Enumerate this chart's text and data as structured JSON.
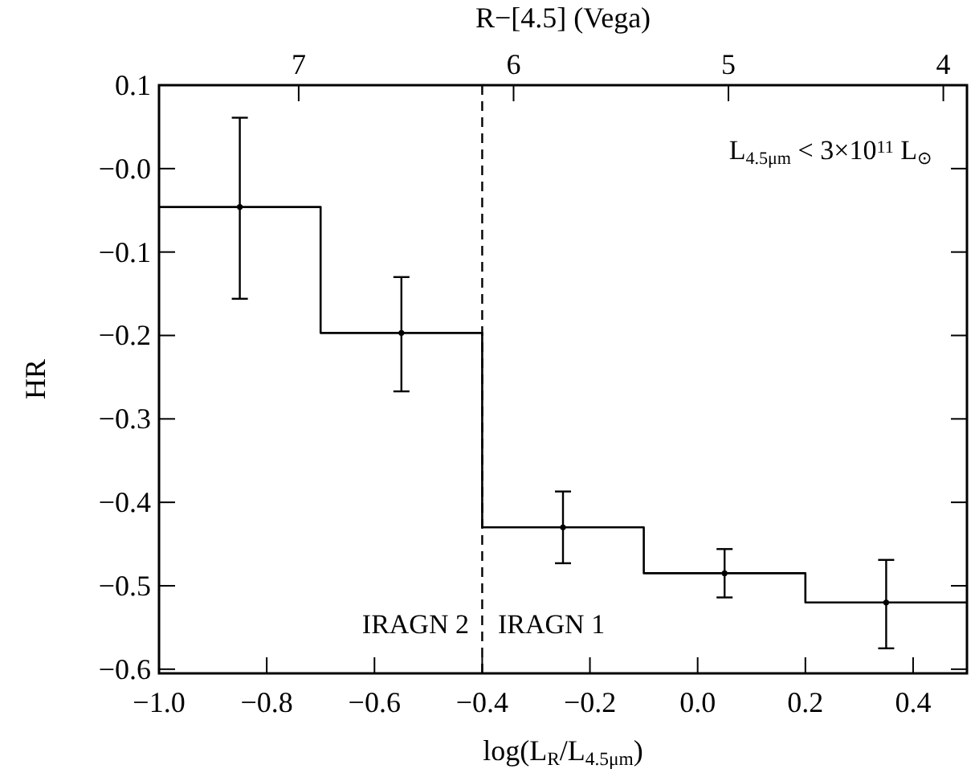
{
  "chart_data": {
    "type": "histogram",
    "xlabel": "log(L$_{R}$/L$_{4.5μm}$)",
    "ylabel": "HR",
    "x2label": "R−[4.5] (Vega)",
    "bins": [
      -1.0,
      -0.7,
      -0.4,
      -0.1,
      0.2,
      0.5
    ],
    "values": [
      -0.046,
      -0.197,
      -0.43,
      -0.485,
      -0.52
    ],
    "color": "#000000",
    "series": [
      {
        "type": "scatter",
        "x": [
          -0.85,
          -0.55,
          -0.25,
          0.05,
          0.35
        ],
        "values": [
          -0.046,
          -0.197,
          -0.43,
          -0.485,
          -0.52
        ],
        "errors": [
          [
            -0.156,
            0.061
          ],
          [
            -0.267,
            -0.13
          ],
          [
            -0.473,
            -0.387
          ],
          [
            -0.514,
            -0.456
          ],
          [
            -0.575,
            -0.469
          ]
        ],
        "color": "#000000"
      }
    ],
    "marker": "circle",
    "xlim": [
      -1.0,
      0.5
    ],
    "xticks": [
      {
        "value": -1.0,
        "label": "−1.0"
      },
      {
        "value": -0.8,
        "label": "−0.8"
      },
      {
        "value": -0.6,
        "label": "−0.6"
      },
      {
        "value": -0.4,
        "label": "−0.4"
      },
      {
        "value": -0.2,
        "label": "−0.2"
      },
      {
        "value": 0,
        "label": "0.0"
      },
      {
        "value": 0.2,
        "label": "0.2"
      },
      {
        "value": 0.4,
        "label": "0.4"
      }
    ],
    "x2lim": [
      7.65,
      3.89
    ],
    "x2ticks": [
      7,
      6,
      5,
      4
    ],
    "ylim": [
      -0.605,
      0.1
    ],
    "yticks": [
      {
        "value": 0.1,
        "label": "0.1"
      },
      {
        "value": 0,
        "label": "−0.0"
      },
      {
        "value": -0.1,
        "label": "−0.1"
      },
      {
        "value": -0.2,
        "label": "−0.2"
      },
      {
        "value": -0.3,
        "label": "−0.3"
      },
      {
        "value": -0.4,
        "label": "−0.4"
      },
      {
        "value": -0.5,
        "label": "−0.5"
      },
      {
        "value": -0.6,
        "label": "−0.6"
      }
    ],
    "ref_lines": [
      {
        "axis": "x",
        "value": -0.4,
        "line_style": "dashed",
        "color": "#000000"
      }
    ],
    "annotations": [
      "IRAGN 2",
      "IRAGN 1",
      "L$_{4.5μm}$ < 3×10$^{11}$ L$_{⊙}$"
    ],
    "grid": false
  }
}
